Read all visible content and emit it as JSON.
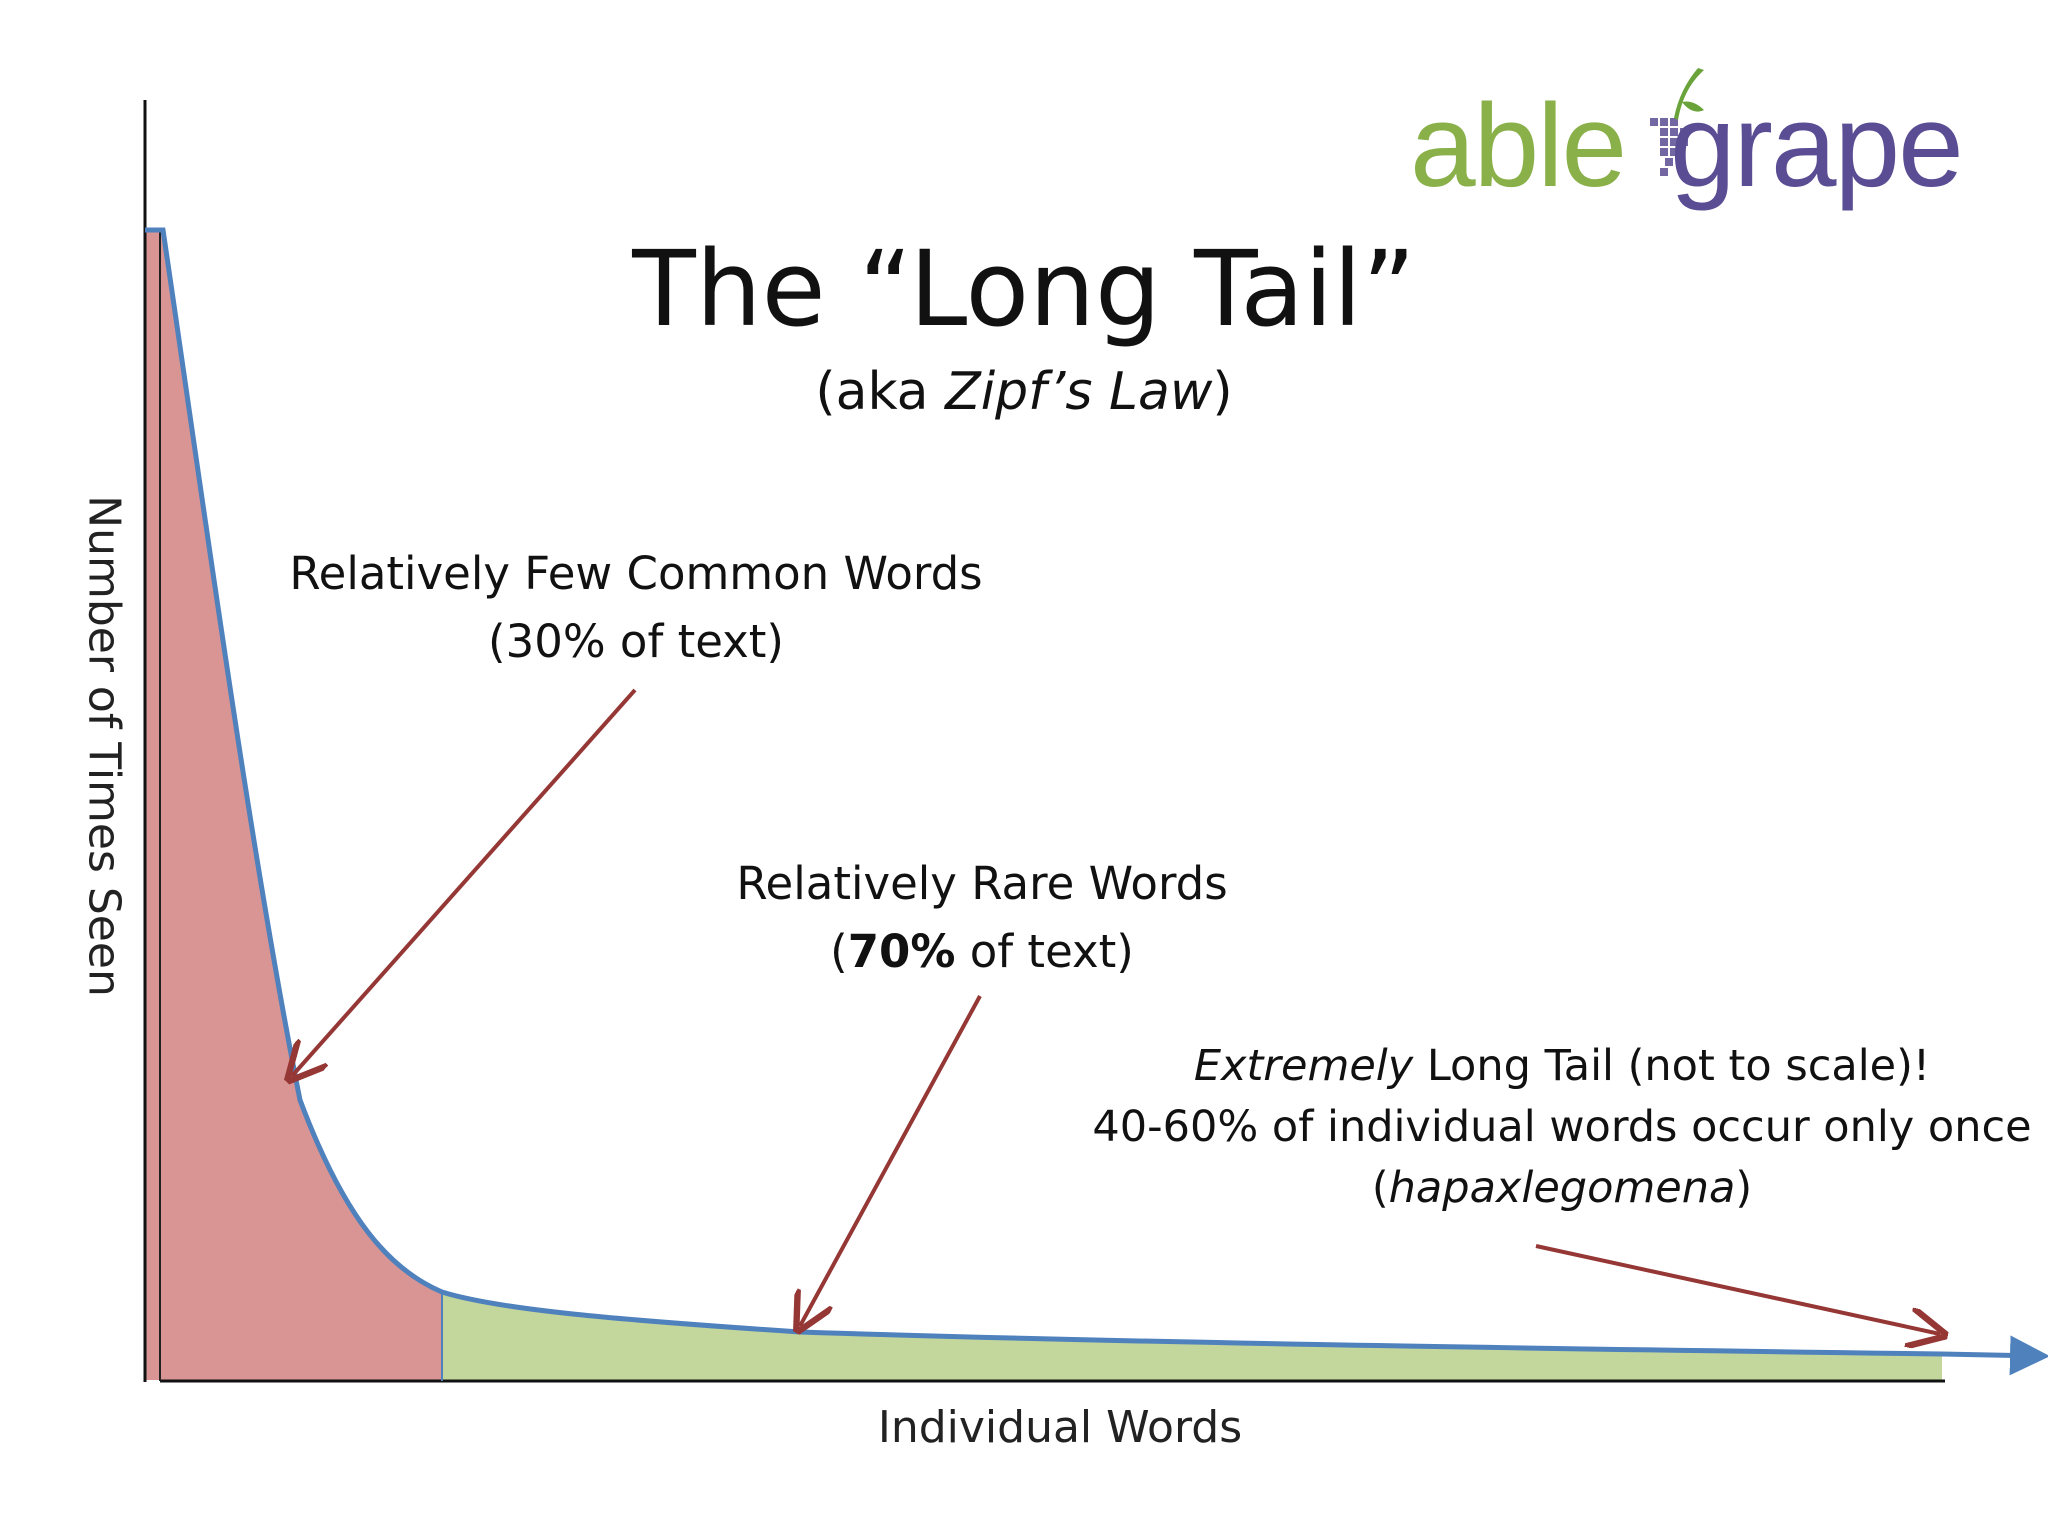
{
  "logo": {
    "part1": "able",
    "part2": "grape",
    "colors": {
      "able": "#8ab04a",
      "grape": "#5a4d93"
    }
  },
  "chart_data": {
    "type": "area",
    "title": "The “Long Tail”",
    "subtitle_prefix": "(aka ",
    "subtitle_italic": "Zipf’s Law",
    "subtitle_suffix": ")",
    "xlabel": "Individual Words",
    "ylabel": "Number of Times Seen",
    "regions": [
      {
        "annotation_line1": "Relatively Few Common Words",
        "annotation_line2": "(30% of text)",
        "color": "#d99594"
      },
      {
        "annotation_line1": "Relatively Rare Words",
        "annotation_bold": "70%",
        "annotation_line2_rest": " of text)",
        "color": "#c3d69b"
      }
    ],
    "tail_annotation": {
      "italic": "Extremely",
      "line1_rest": " Long Tail (not to scale)!",
      "line2": "40-60% of individual words occur only once",
      "line3_italic": "hapaxlegomena"
    },
    "colors": {
      "curve": "#4f81bd",
      "arrows": "#953735"
    }
  }
}
